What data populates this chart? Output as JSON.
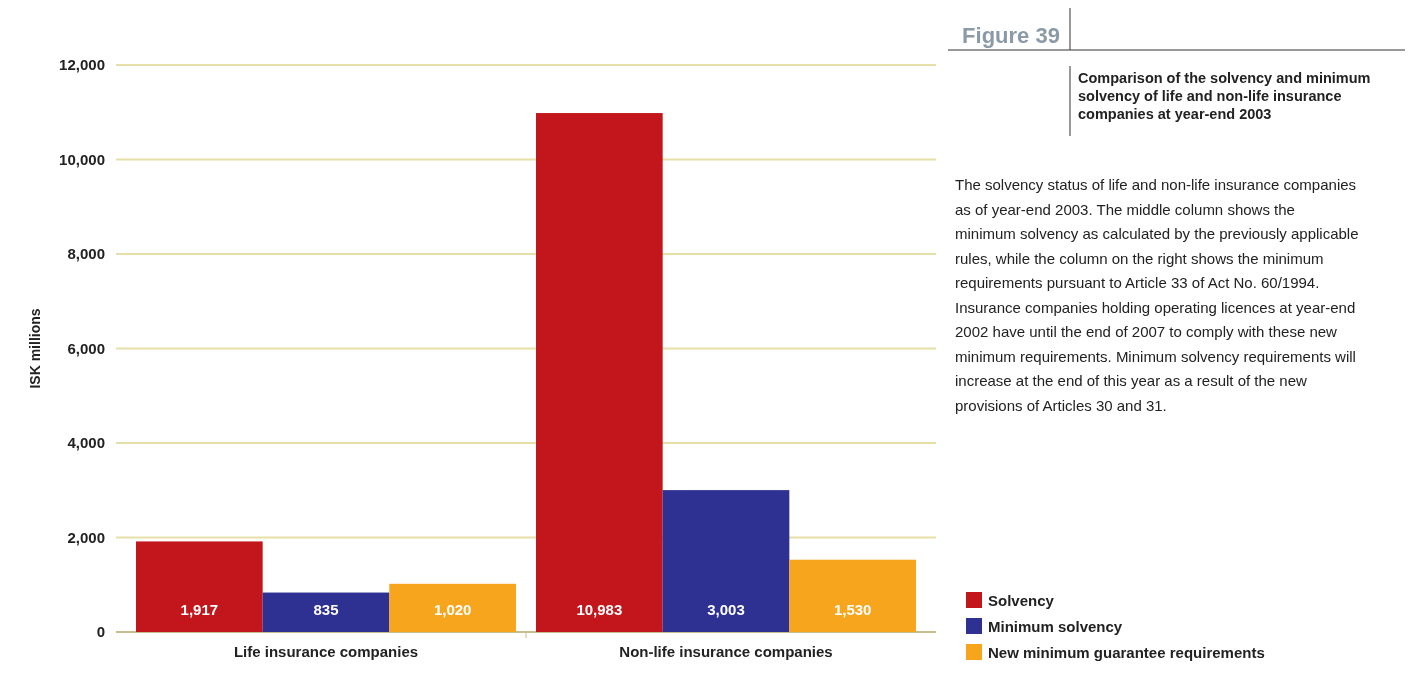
{
  "chart_data": {
    "type": "bar",
    "title": "Comparison of the solvency and minimum solvency of life and non-life insurance companies at year-end 2003",
    "ylabel": "ISK millions",
    "annotations": [
      "Figure 39",
      "The solvency status of life and non-life insurance companies as of year-end 2003. The middle column shows the minimum solvency as calculated by the previously applicable rules, while the column on the right shows the minimum requirements pursuant to Article 33 of Act No. 60/1994. Insurance companies holding operating licences at year-end 2002 have until the end of 2007 to comply with these new minimum requirements. Minimum solvency requirements will increase at the end of this year as a result of the new provisions of Articles 30 and 31."
    ],
    "categories": [
      "Life insurance companies",
      "Non-life insurance companies"
    ],
    "series": [
      {
        "name": "Solvency",
        "color": "#c3161c",
        "values": [
          1917,
          10983
        ],
        "value_labels": [
          "1,917",
          "10,983"
        ]
      },
      {
        "name": "Minimum solvency",
        "color": "#2e3192",
        "values": [
          835,
          3003
        ],
        "value_labels": [
          "835",
          "3,003"
        ]
      },
      {
        "name": "New minimum guarantee requirements",
        "color": "#f7a51c",
        "values": [
          1020,
          1530
        ],
        "value_labels": [
          "1,020",
          "1,530"
        ]
      }
    ],
    "ylim": [
      0,
      12000
    ],
    "yticks": [
      {
        "value": 0,
        "label": "0"
      },
      {
        "value": 2000,
        "label": "2,000"
      },
      {
        "value": 4000,
        "label": "4,000"
      },
      {
        "value": 6000,
        "label": "6,000"
      },
      {
        "value": 8000,
        "label": "8,000"
      },
      {
        "value": 10000,
        "label": "10,000"
      },
      {
        "value": 12000,
        "label": "12,000"
      }
    ],
    "grid": "y",
    "legend": "bottom right"
  }
}
